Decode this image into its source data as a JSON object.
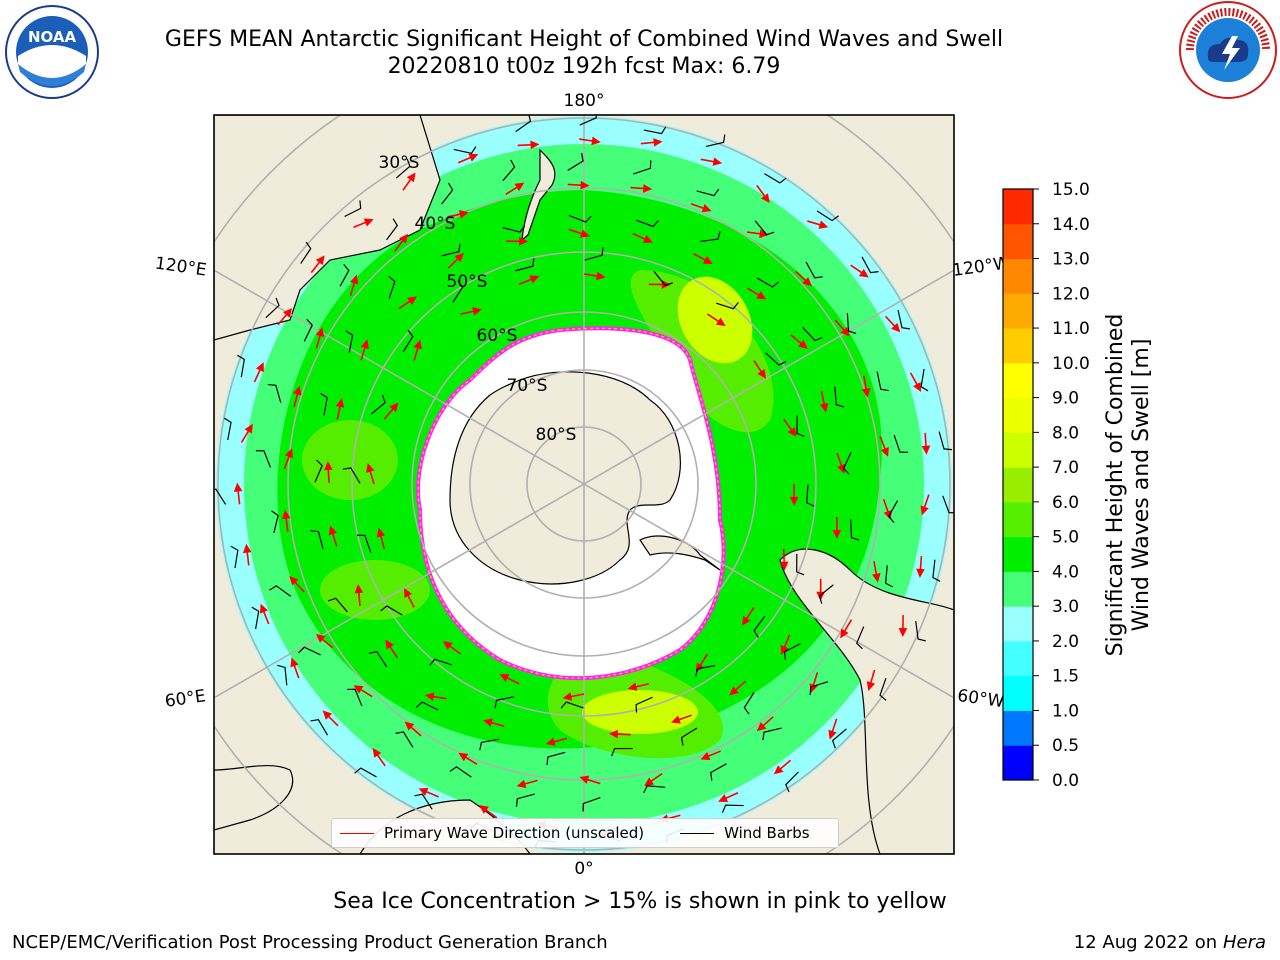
{
  "title": {
    "line1": "GEFS MEAN Antarctic Significant Height of Combined Wind Waves and Swell",
    "line2": "20220810 t00z 192h fcst   Max: 6.79"
  },
  "map": {
    "projection": "south-polar-stereographic",
    "longitude_labels": [
      "180°",
      "120°E",
      "120°W",
      "60°E",
      "60°W",
      "0°"
    ],
    "latitude_labels": [
      "30°S",
      "40°S",
      "50°S",
      "60°S",
      "70°S",
      "80°S"
    ],
    "legend": {
      "waves": "Primary Wave Direction (unscaled)",
      "barbs": "Wind Barbs",
      "waves_color": "#ff0000",
      "barbs_color": "#000000"
    },
    "land_color": "#efecdc",
    "ice_edge_colors": [
      "#ff22ff",
      "#ffd400"
    ]
  },
  "colorbar": {
    "label_line1": "Significant Height of Combined",
    "label_line2": "Wind Waves and Swell [m]",
    "ticks": [
      "0.0",
      "0.5",
      "1.0",
      "1.5",
      "2.0",
      "3.0",
      "4.0",
      "5.0",
      "6.0",
      "7.0",
      "8.0",
      "9.0",
      "10.0",
      "11.0",
      "12.0",
      "13.0",
      "14.0",
      "15.0"
    ],
    "colors": [
      "#0000ff",
      "#0077ff",
      "#00ffff",
      "#44ffff",
      "#99ffff",
      "#44ff77",
      "#00ee00",
      "#55ee00",
      "#99ee00",
      "#ccff00",
      "#eeff00",
      "#ffff00",
      "#ffcc00",
      "#ffaa00",
      "#ff8800",
      "#ff5500",
      "#ff2a00"
    ]
  },
  "footnote": "Sea Ice Concentration > 15% is shown in pink to yellow",
  "credit": "NCEP/EMC/Verification Post Processing Product Generation Branch",
  "date_text": "12 Aug 2022 on",
  "date_machine": "Hera"
}
